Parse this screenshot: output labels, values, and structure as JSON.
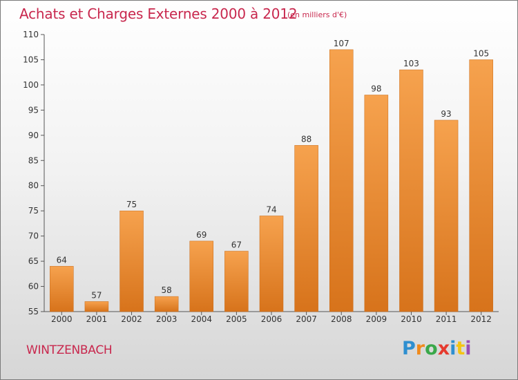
{
  "chart_data": {
    "type": "bar",
    "title": "Achats et Charges Externes 2000 à 2012",
    "subtitle": "(en milliers d'€)",
    "categories": [
      "2000",
      "2001",
      "2002",
      "2003",
      "2004",
      "2005",
      "2006",
      "2007",
      "2008",
      "2009",
      "2010",
      "2011",
      "2012"
    ],
    "values": [
      64,
      57,
      75,
      58,
      69,
      67,
      74,
      88,
      107,
      98,
      103,
      93,
      105
    ],
    "ylim": [
      55,
      110
    ],
    "yticks": [
      55,
      60,
      65,
      70,
      75,
      80,
      85,
      90,
      95,
      100,
      105,
      110
    ],
    "xlabel": "",
    "ylabel": "",
    "grid": false,
    "bar_color_top": "#f6a24e",
    "bar_color_bottom": "#d7731b"
  },
  "footer": {
    "town": "WINTZENBACH",
    "logo_text": "Proxiti",
    "logo_letters": [
      {
        "ch": "P",
        "color": "#2e8fd0"
      },
      {
        "ch": "r",
        "color": "#f08a1c"
      },
      {
        "ch": "o",
        "color": "#3aa84a"
      },
      {
        "ch": "x",
        "color": "#e63a2e"
      },
      {
        "ch": "i",
        "color": "#2e8fd0"
      },
      {
        "ch": "t",
        "color": "#f4c414"
      },
      {
        "ch": "i",
        "color": "#9a4fb5"
      }
    ]
  },
  "colors": {
    "title": "#c8274d",
    "axis": "#555555",
    "text": "#333333"
  }
}
